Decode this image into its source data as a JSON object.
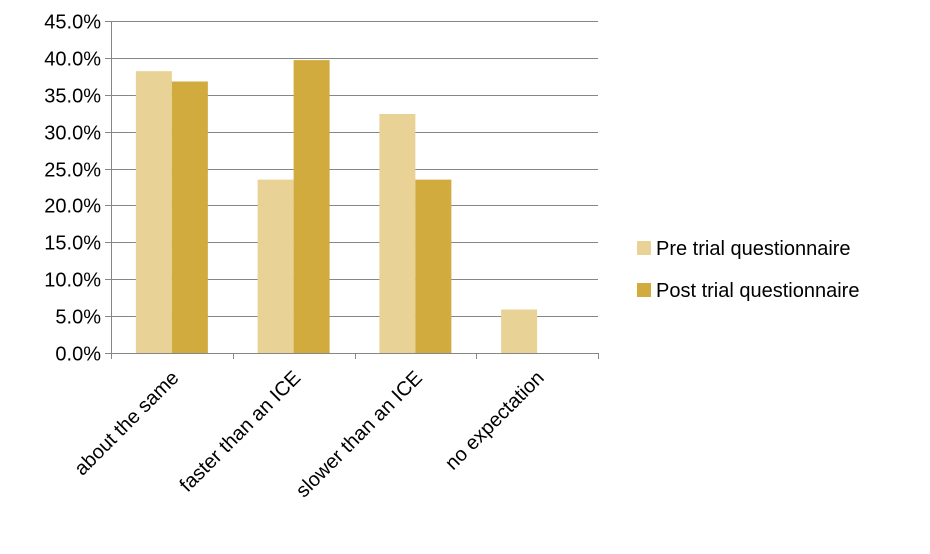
{
  "chart_data": {
    "type": "bar",
    "title": "",
    "xlabel": "",
    "ylabel": "",
    "categories": [
      "about the same",
      "faster than an ICE",
      "slower than an ICE",
      "no expectation"
    ],
    "series": [
      {
        "name": "Pre trial questionnaire",
        "values": [
          38.2,
          23.5,
          32.4,
          5.9
        ],
        "color": "#E8D296"
      },
      {
        "name": "Post trial questionnaire",
        "values": [
          36.8,
          39.7,
          23.5,
          0.0
        ],
        "color": "#D2AB3E"
      }
    ],
    "ylim": [
      0,
      45
    ],
    "yticks": [
      "0.0%",
      "5.0%",
      "10.0%",
      "15.0%",
      "20.0%",
      "25.0%",
      "30.0%",
      "35.0%",
      "40.0%",
      "45.0%"
    ],
    "grid": true,
    "legend_position": "right",
    "axis_color": "#868686"
  }
}
